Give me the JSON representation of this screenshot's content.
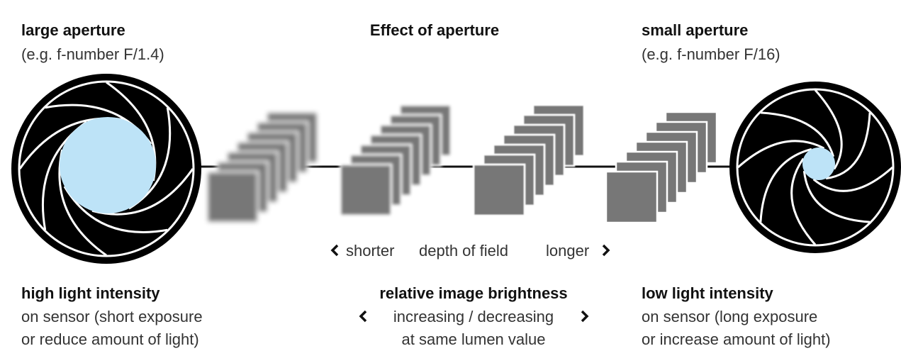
{
  "left": {
    "title": "large aperture",
    "subtitle": "(e.g. f-number F/1.4)"
  },
  "center": {
    "title": "Effect of aperture"
  },
  "right": {
    "title": "small aperture",
    "subtitle": "(e.g. f-number F/16)"
  },
  "depth_of_field": {
    "left": "shorter",
    "label": "depth of field",
    "right": "longer"
  },
  "bottom": {
    "left": {
      "title": "high light intensity",
      "line1": "on sensor (short exposure",
      "line2": "or reduce amount of light)"
    },
    "center": {
      "title": "relative image brightness",
      "line1": "increasing / decreasing",
      "line2": "at same lumen value"
    },
    "right": {
      "title": "low light intensity",
      "line1": "on sensor (long exposure",
      "line2": "or increase amount of light)"
    }
  }
}
